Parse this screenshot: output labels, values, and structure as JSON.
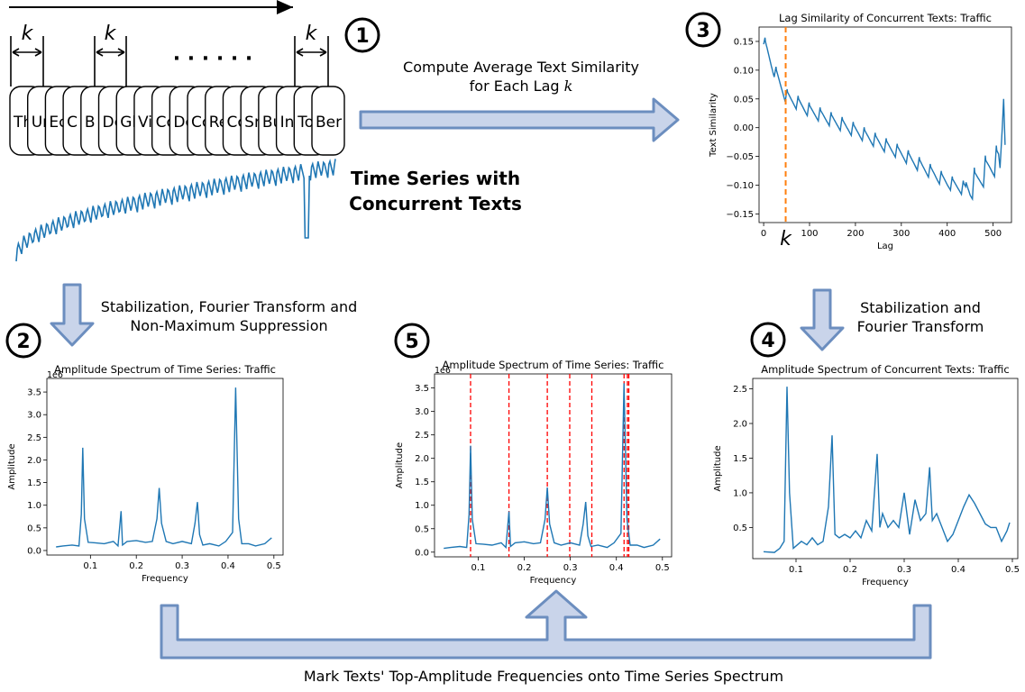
{
  "colors": {
    "series_blue": "#1f77b4",
    "arrow_fill": "#c9d4ea",
    "arrow_stroke": "#6c8ebf",
    "orange_dashed": "#ff7f0e",
    "red_dashed": "#ff0000"
  },
  "steps": {
    "s1": "1",
    "s2": "2",
    "s3": "3",
    "s4": "4",
    "s5": "5"
  },
  "texts": {
    "lag_k": "k",
    "dots": "· · · · · ·",
    "ts_label_line1": "Time Series with",
    "ts_label_line2": "Concurrent Texts",
    "arrow1_line1": "Compute Average Text Similarity",
    "arrow1_line2": "for Each Lag ",
    "arrow1_k": "k",
    "arrow2_line1": "Stabilization, Fourier Transform and",
    "arrow2_line2": "Non-Maximum Suppression",
    "arrow3_line1": "Stabilization and",
    "arrow3_line2": "Fourier Transform",
    "bottom_caption": "Mark Texts' Top-Amplitude Frequencies onto Time Series Spectrum"
  },
  "text_boxes": [
    "Th",
    "Ur",
    "Ec",
    "C",
    "B",
    "Dc",
    "Gl",
    "Vi",
    "Cc",
    "Dc",
    "Cc",
    "Re",
    "Cc",
    "Sr",
    "Bu",
    "In",
    "To",
    "Ber"
  ],
  "chart_data": [
    {
      "id": "lag_similarity",
      "type": "line",
      "title": "Lag Similarity of Concurrent Texts: Traffic",
      "xlabel": "Lag",
      "ylabel": "Text Similarity",
      "xlim": [
        -10,
        540
      ],
      "ylim": [
        -0.165,
        0.175
      ],
      "xticks": [
        0,
        100,
        200,
        300,
        400,
        500
      ],
      "yticks": [
        -0.15,
        -0.1,
        -0.05,
        0.0,
        0.05,
        0.1,
        0.15
      ],
      "ytick_labels": [
        "−0.15",
        "−0.10",
        "−0.05",
        "0.00",
        "0.05",
        "0.10",
        "0.15"
      ],
      "marker": {
        "x": 48,
        "label": "k"
      },
      "trend": [
        [
          0,
          0.145
        ],
        [
          20,
          0.1
        ],
        [
          48,
          0.05
        ],
        [
          100,
          0.025
        ],
        [
          200,
          -0.01
        ],
        [
          300,
          -0.05
        ],
        [
          400,
          -0.1
        ],
        [
          450,
          -0.115
        ],
        [
          490,
          -0.08
        ],
        [
          520,
          -0.06
        ]
      ],
      "end_spike": [
        [
          515,
          -0.07
        ],
        [
          520,
          0.0
        ],
        [
          523,
          0.05
        ],
        [
          526,
          -0.03
        ]
      ]
    },
    {
      "id": "ts_spectrum",
      "type": "line",
      "title": "Amplitude Spectrum of Time Series: Traffic",
      "xlabel": "Frequency",
      "ylabel": "Amplitude",
      "multiplier": "1e6",
      "xlim": [
        0.005,
        0.52
      ],
      "ylim": [
        -0.1,
        3.8
      ],
      "xticks": [
        0.1,
        0.2,
        0.3,
        0.4,
        0.5
      ],
      "yticks": [
        0.0,
        0.5,
        1.0,
        1.5,
        2.0,
        2.5,
        3.0,
        3.5
      ],
      "x": [
        0.025,
        0.04,
        0.06,
        0.075,
        0.08,
        0.0833,
        0.087,
        0.095,
        0.11,
        0.13,
        0.15,
        0.16,
        0.1667,
        0.17,
        0.18,
        0.2,
        0.22,
        0.235,
        0.245,
        0.25,
        0.255,
        0.265,
        0.28,
        0.3,
        0.32,
        0.328,
        0.3333,
        0.338,
        0.345,
        0.36,
        0.38,
        0.395,
        0.41,
        0.4167,
        0.423,
        0.43,
        0.445,
        0.46,
        0.48,
        0.495
      ],
      "values": [
        0.08,
        0.1,
        0.12,
        0.1,
        0.8,
        2.27,
        0.7,
        0.18,
        0.17,
        0.15,
        0.2,
        0.1,
        0.87,
        0.12,
        0.2,
        0.22,
        0.18,
        0.2,
        0.7,
        1.38,
        0.6,
        0.2,
        0.15,
        0.2,
        0.15,
        0.6,
        1.07,
        0.35,
        0.12,
        0.15,
        0.1,
        0.2,
        0.4,
        3.6,
        0.7,
        0.15,
        0.15,
        0.1,
        0.15,
        0.28
      ],
      "red_lines": []
    },
    {
      "id": "marked_spectrum",
      "type": "line",
      "title": "Amplitude Spectrum of Time Series: Traffic",
      "xlabel": "Frequency",
      "ylabel": "Amplitude",
      "multiplier": "1e6",
      "xlim": [
        0.005,
        0.52
      ],
      "ylim": [
        -0.1,
        3.8
      ],
      "xticks": [
        0.1,
        0.2,
        0.3,
        0.4,
        0.5
      ],
      "yticks": [
        0.0,
        0.5,
        1.0,
        1.5,
        2.0,
        2.5,
        3.0,
        3.5
      ],
      "x": [
        0.025,
        0.04,
        0.06,
        0.075,
        0.08,
        0.0833,
        0.087,
        0.095,
        0.11,
        0.13,
        0.15,
        0.16,
        0.1667,
        0.17,
        0.18,
        0.2,
        0.22,
        0.235,
        0.245,
        0.25,
        0.255,
        0.265,
        0.28,
        0.3,
        0.32,
        0.328,
        0.3333,
        0.338,
        0.345,
        0.36,
        0.38,
        0.395,
        0.41,
        0.4167,
        0.423,
        0.43,
        0.445,
        0.46,
        0.48,
        0.495
      ],
      "values": [
        0.08,
        0.1,
        0.12,
        0.1,
        0.8,
        2.27,
        0.7,
        0.18,
        0.17,
        0.15,
        0.2,
        0.1,
        0.87,
        0.12,
        0.2,
        0.22,
        0.18,
        0.2,
        0.7,
        1.38,
        0.6,
        0.2,
        0.15,
        0.2,
        0.15,
        0.6,
        1.07,
        0.35,
        0.12,
        0.15,
        0.1,
        0.2,
        0.4,
        3.6,
        0.7,
        0.15,
        0.15,
        0.1,
        0.15,
        0.28
      ],
      "red_lines": [
        0.0833,
        0.1667,
        0.25,
        0.2987,
        0.3467,
        0.4167,
        0.424,
        0.427
      ]
    },
    {
      "id": "text_spectrum",
      "type": "line",
      "title": "Amplitude Spectrum of Concurrent Texts: Traffic",
      "xlabel": "Frequency",
      "ylabel": "Amplitude",
      "xlim": [
        0.02,
        0.51
      ],
      "ylim": [
        0.05,
        2.65
      ],
      "xticks": [
        0.1,
        0.2,
        0.3,
        0.4,
        0.5
      ],
      "yticks": [
        0.5,
        1.0,
        1.5,
        2.0,
        2.5
      ],
      "x": [
        0.04,
        0.06,
        0.07,
        0.078,
        0.0833,
        0.088,
        0.095,
        0.11,
        0.12,
        0.13,
        0.14,
        0.15,
        0.16,
        0.1667,
        0.172,
        0.18,
        0.19,
        0.2,
        0.21,
        0.22,
        0.23,
        0.24,
        0.25,
        0.255,
        0.26,
        0.27,
        0.28,
        0.29,
        0.3,
        0.31,
        0.32,
        0.33,
        0.34,
        0.347,
        0.352,
        0.36,
        0.37,
        0.38,
        0.39,
        0.4,
        0.41,
        0.42,
        0.43,
        0.44,
        0.45,
        0.46,
        0.47,
        0.48,
        0.49,
        0.495
      ],
      "values": [
        0.15,
        0.14,
        0.2,
        0.3,
        2.53,
        1.0,
        0.2,
        0.3,
        0.25,
        0.35,
        0.25,
        0.3,
        0.8,
        1.83,
        0.4,
        0.35,
        0.4,
        0.35,
        0.45,
        0.35,
        0.6,
        0.45,
        1.56,
        0.5,
        0.7,
        0.5,
        0.6,
        0.5,
        1.0,
        0.4,
        0.9,
        0.6,
        0.7,
        1.37,
        0.6,
        0.7,
        0.5,
        0.3,
        0.4,
        0.6,
        0.8,
        0.97,
        0.85,
        0.7,
        0.55,
        0.5,
        0.5,
        0.3,
        0.45,
        0.57
      ]
    }
  ]
}
